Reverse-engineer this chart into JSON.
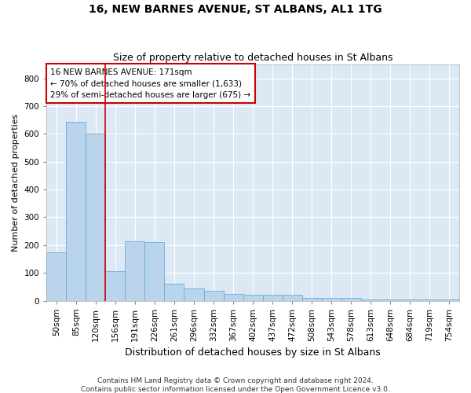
{
  "title": "16, NEW BARNES AVENUE, ST ALBANS, AL1 1TG",
  "subtitle": "Size of property relative to detached houses in St Albans",
  "xlabel": "Distribution of detached houses by size in St Albans",
  "ylabel": "Number of detached properties",
  "footnote1": "Contains HM Land Registry data © Crown copyright and database right 2024.",
  "footnote2": "Contains public sector information licensed under the Open Government Licence v3.0.",
  "categories": [
    "50sqm",
    "85sqm",
    "120sqm",
    "156sqm",
    "191sqm",
    "226sqm",
    "261sqm",
    "296sqm",
    "332sqm",
    "367sqm",
    "402sqm",
    "437sqm",
    "472sqm",
    "508sqm",
    "543sqm",
    "578sqm",
    "613sqm",
    "648sqm",
    "684sqm",
    "719sqm",
    "754sqm"
  ],
  "values": [
    175,
    645,
    600,
    105,
    215,
    210,
    60,
    45,
    35,
    25,
    20,
    20,
    20,
    10,
    10,
    10,
    5,
    5,
    5,
    5,
    5
  ],
  "bar_color": "#bad4ec",
  "bar_edge_color": "#6baed6",
  "property_line_x": 2.5,
  "annotation_text1": "16 NEW BARNES AVENUE: 171sqm",
  "annotation_text2": "← 70% of detached houses are smaller (1,633)",
  "annotation_text3": "29% of semi-detached houses are larger (675) →",
  "annotation_box_facecolor": "#ffffff",
  "annotation_box_edgecolor": "#cc0000",
  "vline_color": "#cc0000",
  "ylim": [
    0,
    850
  ],
  "yticks": [
    0,
    100,
    200,
    300,
    400,
    500,
    600,
    700,
    800
  ],
  "bg_color": "#dce9f5",
  "fig_bg_color": "#ffffff",
  "grid_color": "#ffffff",
  "title_fontsize": 10,
  "subtitle_fontsize": 9,
  "xlabel_fontsize": 9,
  "ylabel_fontsize": 8,
  "tick_fontsize": 7.5,
  "annotation_fontsize": 7.5,
  "footnote_fontsize": 6.5
}
